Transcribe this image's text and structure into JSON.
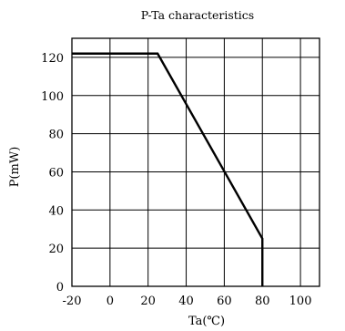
{
  "chart_data": {
    "type": "line",
    "title": "P-Ta characteristics",
    "xlabel": "Ta(℃)",
    "ylabel": "P(mW)",
    "xlim": [
      -20,
      110
    ],
    "ylim": [
      0,
      130
    ],
    "x_ticks": [
      -20,
      0,
      20,
      40,
      60,
      80,
      100
    ],
    "y_ticks": [
      0,
      20,
      40,
      60,
      80,
      100,
      120
    ],
    "x_tick_labels": [
      "-20",
      "0",
      "20",
      "40",
      "60",
      "80",
      "100"
    ],
    "y_tick_labels": [
      "0",
      "20",
      "40",
      "60",
      "80",
      "100",
      "120"
    ],
    "grid": true,
    "series": [
      {
        "x": [
          -20,
          25,
          80,
          80
        ],
        "y": [
          122,
          122,
          25,
          0
        ]
      }
    ]
  }
}
